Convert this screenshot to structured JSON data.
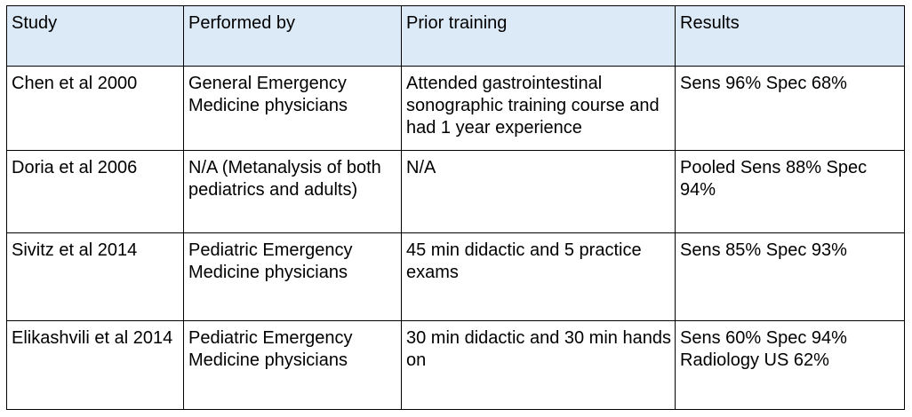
{
  "table": {
    "header_bg": "#dce9f7",
    "headers": [
      "Study",
      "Performed by",
      "Prior training",
      "Results"
    ],
    "rows": [
      [
        "Chen et al 2000",
        "General Emergency Medicine physicians",
        "Attended gastrointestinal sonographic training course and had 1 year experience",
        "Sens 96% Spec 68%"
      ],
      [
        "Doria et al 2006",
        "N/A (Metanalysis of both pediatrics and adults)",
        "N/A",
        "Pooled Sens 88% Spec 94%"
      ],
      [
        "Sivitz et al 2014",
        "Pediatric Emergency Medicine physicians",
        "45 min didactic and 5 practice exams",
        "Sens 85% Spec 93%"
      ],
      [
        "Elikashvili et al 2014",
        "Pediatric Emergency Medicine physicians",
        "30 min didactic and 30 min hands on",
        "Sens 60% Spec 94% Radiology US 62%"
      ]
    ]
  }
}
